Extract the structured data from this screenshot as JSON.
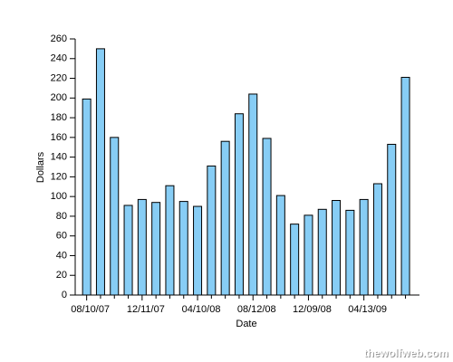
{
  "chart_data": {
    "type": "bar",
    "x_label": "Date",
    "y_label": "Dollars",
    "categories": [
      "08/10/07",
      null,
      null,
      null,
      "12/11/07",
      null,
      null,
      null,
      "04/10/08",
      null,
      null,
      null,
      "08/12/08",
      null,
      null,
      null,
      "12/09/08",
      null,
      null,
      null,
      "04/13/09",
      null,
      null,
      null
    ],
    "values": [
      199,
      250,
      160,
      91,
      97,
      94,
      111,
      95,
      90,
      131,
      156,
      184,
      204,
      159,
      101,
      72,
      81,
      87,
      96,
      86,
      97,
      113,
      153,
      221
    ],
    "color": "#87cdf5",
    "ylim": [
      0,
      260
    ],
    "yticks": [
      0,
      20,
      40,
      60,
      80,
      100,
      120,
      140,
      160,
      180,
      200,
      220,
      240,
      260
    ],
    "grid": false
  },
  "watermark": "thewolfweb.com"
}
